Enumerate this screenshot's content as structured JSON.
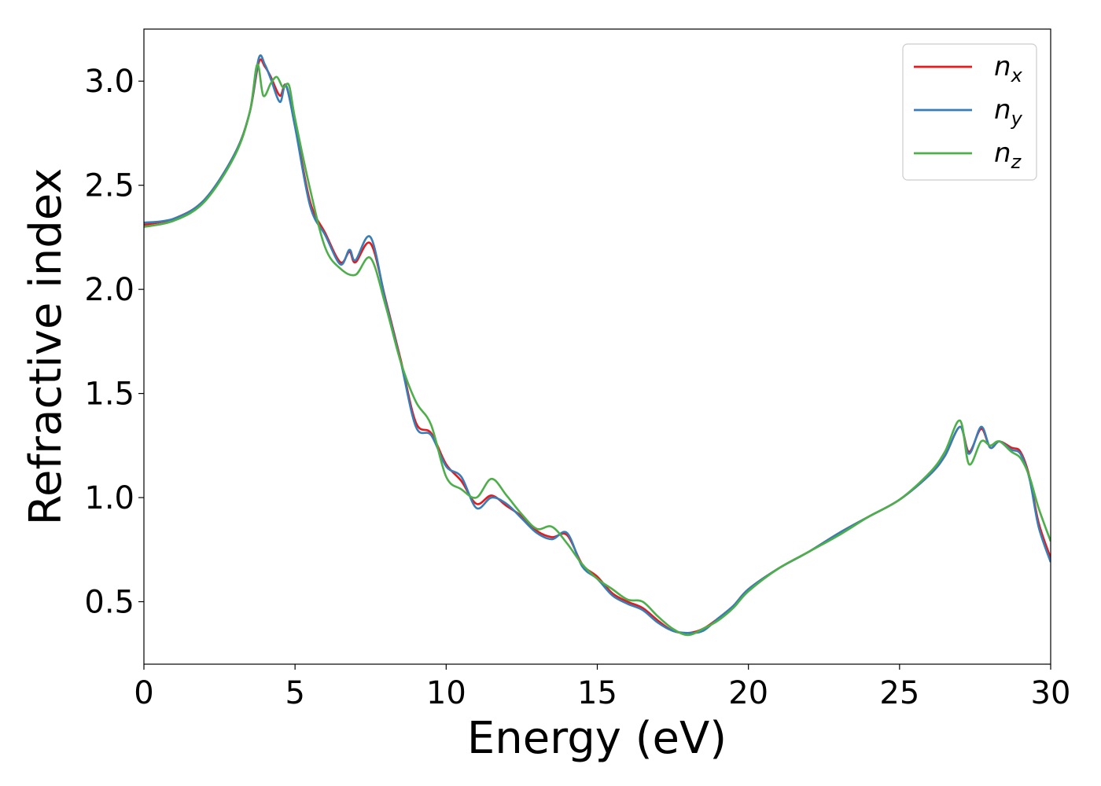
{
  "chart_data": {
    "type": "line",
    "xlabel": "Energy (eV)",
    "ylabel": "Refractive index",
    "xlim": [
      0,
      30
    ],
    "ylim": [
      0.2,
      3.25
    ],
    "xticks": [
      0,
      5,
      10,
      15,
      20,
      25,
      30
    ],
    "xtick_labels": [
      "0",
      "5",
      "10",
      "15",
      "20",
      "25",
      "30"
    ],
    "yticks": [
      0.5,
      1.0,
      1.5,
      2.0,
      2.5,
      3.0
    ],
    "ytick_labels": [
      "0.5",
      "1.0",
      "1.5",
      "2.0",
      "2.5",
      "3.0"
    ],
    "grid": false,
    "legend_position": "top-right",
    "series": [
      {
        "name": "n_x",
        "label_base": "n",
        "label_sub": "x",
        "color": "#e41a1c",
        "x": [
          0,
          1,
          2,
          3,
          3.5,
          3.8,
          4.0,
          4.2,
          4.5,
          4.7,
          5.0,
          5.5,
          6.0,
          6.5,
          6.8,
          7.0,
          7.5,
          8.0,
          8.5,
          9.0,
          9.5,
          10.0,
          10.5,
          11.0,
          11.5,
          12.0,
          12.5,
          13.0,
          13.5,
          14.0,
          14.5,
          15.0,
          15.5,
          16.0,
          16.5,
          17.0,
          17.5,
          18.0,
          18.5,
          19.0,
          19.5,
          20.0,
          21.0,
          22.0,
          23.0,
          24.0,
          25.0,
          26.0,
          26.5,
          27.0,
          27.3,
          27.7,
          28.0,
          28.3,
          28.7,
          29.0,
          29.3,
          29.6,
          30.0
        ],
        "y": [
          2.31,
          2.34,
          2.43,
          2.65,
          2.85,
          3.09,
          3.07,
          3.02,
          2.93,
          2.98,
          2.79,
          2.42,
          2.27,
          2.13,
          2.18,
          2.13,
          2.22,
          1.95,
          1.66,
          1.36,
          1.31,
          1.16,
          1.08,
          0.97,
          1.01,
          0.96,
          0.91,
          0.84,
          0.81,
          0.82,
          0.68,
          0.62,
          0.54,
          0.5,
          0.47,
          0.41,
          0.36,
          0.35,
          0.37,
          0.42,
          0.48,
          0.56,
          0.66,
          0.74,
          0.83,
          0.91,
          0.99,
          1.11,
          1.2,
          1.34,
          1.22,
          1.33,
          1.24,
          1.27,
          1.24,
          1.22,
          1.1,
          0.88,
          0.71
        ]
      },
      {
        "name": "n_y",
        "label_base": "n",
        "label_sub": "y",
        "color": "#377eb8",
        "x": [
          0,
          1,
          2,
          3,
          3.5,
          3.8,
          4.0,
          4.2,
          4.5,
          4.7,
          5.0,
          5.5,
          6.0,
          6.5,
          6.8,
          7.0,
          7.5,
          8.0,
          8.5,
          9.0,
          9.5,
          10.0,
          10.5,
          11.0,
          11.5,
          12.0,
          12.5,
          13.0,
          13.5,
          14.0,
          14.5,
          15.0,
          15.5,
          16.0,
          16.5,
          17.0,
          17.5,
          18.0,
          18.5,
          19.0,
          19.5,
          20.0,
          21.0,
          22.0,
          23.0,
          24.0,
          25.0,
          26.0,
          26.5,
          27.0,
          27.3,
          27.7,
          28.0,
          28.3,
          28.7,
          29.0,
          29.3,
          29.6,
          30.0
        ],
        "y": [
          2.32,
          2.34,
          2.43,
          2.65,
          2.85,
          3.11,
          3.08,
          3.01,
          2.9,
          2.98,
          2.78,
          2.4,
          2.26,
          2.12,
          2.19,
          2.14,
          2.25,
          1.94,
          1.65,
          1.34,
          1.3,
          1.15,
          1.1,
          0.95,
          1.0,
          0.97,
          0.9,
          0.83,
          0.8,
          0.83,
          0.67,
          0.61,
          0.53,
          0.49,
          0.46,
          0.4,
          0.36,
          0.35,
          0.36,
          0.42,
          0.48,
          0.56,
          0.66,
          0.74,
          0.83,
          0.91,
          0.99,
          1.11,
          1.2,
          1.34,
          1.21,
          1.34,
          1.24,
          1.27,
          1.23,
          1.21,
          1.09,
          0.86,
          0.69
        ]
      },
      {
        "name": "n_z",
        "label_base": "n",
        "label_sub": "z",
        "color": "#4daf4a",
        "x": [
          0,
          1,
          2,
          3,
          3.5,
          3.75,
          3.95,
          4.2,
          4.4,
          4.6,
          4.8,
          5.0,
          5.5,
          6.0,
          6.5,
          7.0,
          7.5,
          8.0,
          8.5,
          9.0,
          9.5,
          10.0,
          10.5,
          11.0,
          11.5,
          12.0,
          12.5,
          13.0,
          13.5,
          14.0,
          14.5,
          15.0,
          15.5,
          16.0,
          16.5,
          17.0,
          17.5,
          18.0,
          18.5,
          19.0,
          19.5,
          20.0,
          21.0,
          22.0,
          23.0,
          24.0,
          25.0,
          26.0,
          26.5,
          27.0,
          27.3,
          27.7,
          28.0,
          28.3,
          28.7,
          29.0,
          29.3,
          29.6,
          30.0
        ],
        "y": [
          2.3,
          2.33,
          2.42,
          2.64,
          2.85,
          3.08,
          2.93,
          2.99,
          3.02,
          2.97,
          2.98,
          2.82,
          2.48,
          2.2,
          2.1,
          2.07,
          2.15,
          1.92,
          1.65,
          1.46,
          1.35,
          1.1,
          1.04,
          1.0,
          1.09,
          1.01,
          0.92,
          0.85,
          0.86,
          0.78,
          0.68,
          0.61,
          0.56,
          0.51,
          0.5,
          0.43,
          0.37,
          0.34,
          0.37,
          0.41,
          0.47,
          0.55,
          0.66,
          0.74,
          0.82,
          0.91,
          0.99,
          1.12,
          1.22,
          1.37,
          1.16,
          1.27,
          1.25,
          1.27,
          1.22,
          1.19,
          1.1,
          0.95,
          0.79
        ]
      }
    ]
  }
}
